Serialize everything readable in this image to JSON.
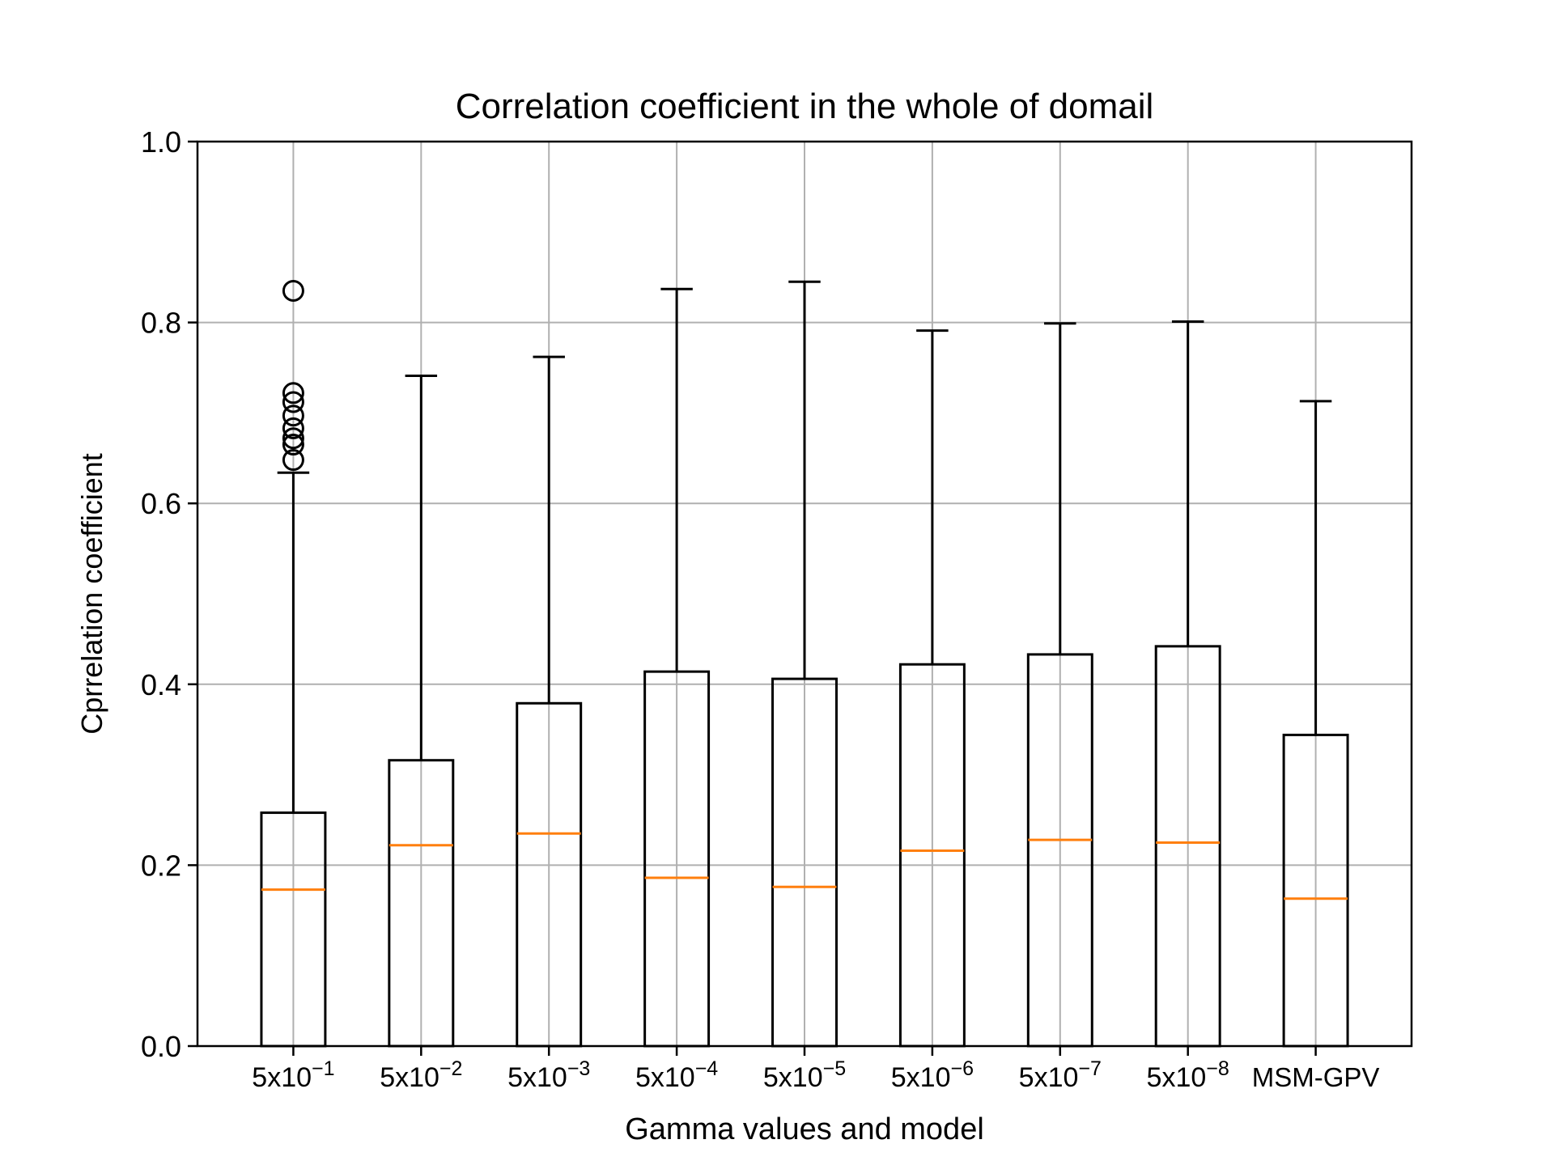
{
  "chart_data": {
    "type": "boxplot",
    "title": "Correlation coefficient in the whole of domail",
    "xlabel": "Gamma values and model",
    "ylabel": "Cprrelation coefficient",
    "ylim": [
      0.0,
      1.0
    ],
    "yticks": [
      "0.0",
      "0.2",
      "0.4",
      "0.6",
      "0.8",
      "1.0"
    ],
    "grid": true,
    "categories": [
      {
        "base": "5x10",
        "exp": "−1"
      },
      {
        "base": "5x10",
        "exp": "−2"
      },
      {
        "base": "5x10",
        "exp": "−3"
      },
      {
        "base": "5x10",
        "exp": "−4"
      },
      {
        "base": "5x10",
        "exp": "−5"
      },
      {
        "base": "5x10",
        "exp": "−6"
      },
      {
        "base": "5x10",
        "exp": "−7"
      },
      {
        "base": "5x10",
        "exp": "−8"
      },
      {
        "base": "MSM-GPV",
        "exp": ""
      }
    ],
    "boxes": [
      {
        "whisker_low": 0.0,
        "q1": 0.0,
        "median": 0.173,
        "q3": 0.258,
        "whisker_high": 0.634,
        "fliers": [
          0.835,
          0.722,
          0.712,
          0.697,
          0.683,
          0.672,
          0.665,
          0.648
        ]
      },
      {
        "whisker_low": 0.0,
        "q1": 0.0,
        "median": 0.222,
        "q3": 0.316,
        "whisker_high": 0.741,
        "fliers": []
      },
      {
        "whisker_low": 0.0,
        "q1": 0.0,
        "median": 0.235,
        "q3": 0.379,
        "whisker_high": 0.762,
        "fliers": []
      },
      {
        "whisker_low": 0.0,
        "q1": 0.0,
        "median": 0.186,
        "q3": 0.414,
        "whisker_high": 0.837,
        "fliers": []
      },
      {
        "whisker_low": 0.0,
        "q1": 0.0,
        "median": 0.176,
        "q3": 0.406,
        "whisker_high": 0.845,
        "fliers": []
      },
      {
        "whisker_low": 0.0,
        "q1": 0.0,
        "median": 0.216,
        "q3": 0.422,
        "whisker_high": 0.791,
        "fliers": []
      },
      {
        "whisker_low": 0.0,
        "q1": 0.0,
        "median": 0.228,
        "q3": 0.433,
        "whisker_high": 0.799,
        "fliers": []
      },
      {
        "whisker_low": 0.0,
        "q1": 0.0,
        "median": 0.225,
        "q3": 0.442,
        "whisker_high": 0.801,
        "fliers": []
      },
      {
        "whisker_low": 0.0,
        "q1": 0.0,
        "median": 0.163,
        "q3": 0.344,
        "whisker_high": 0.713,
        "fliers": []
      }
    ],
    "colors": {
      "box": "#000000",
      "median": "#ff7f0e",
      "grid": "#b0b0b0",
      "flier": "#000000"
    }
  }
}
